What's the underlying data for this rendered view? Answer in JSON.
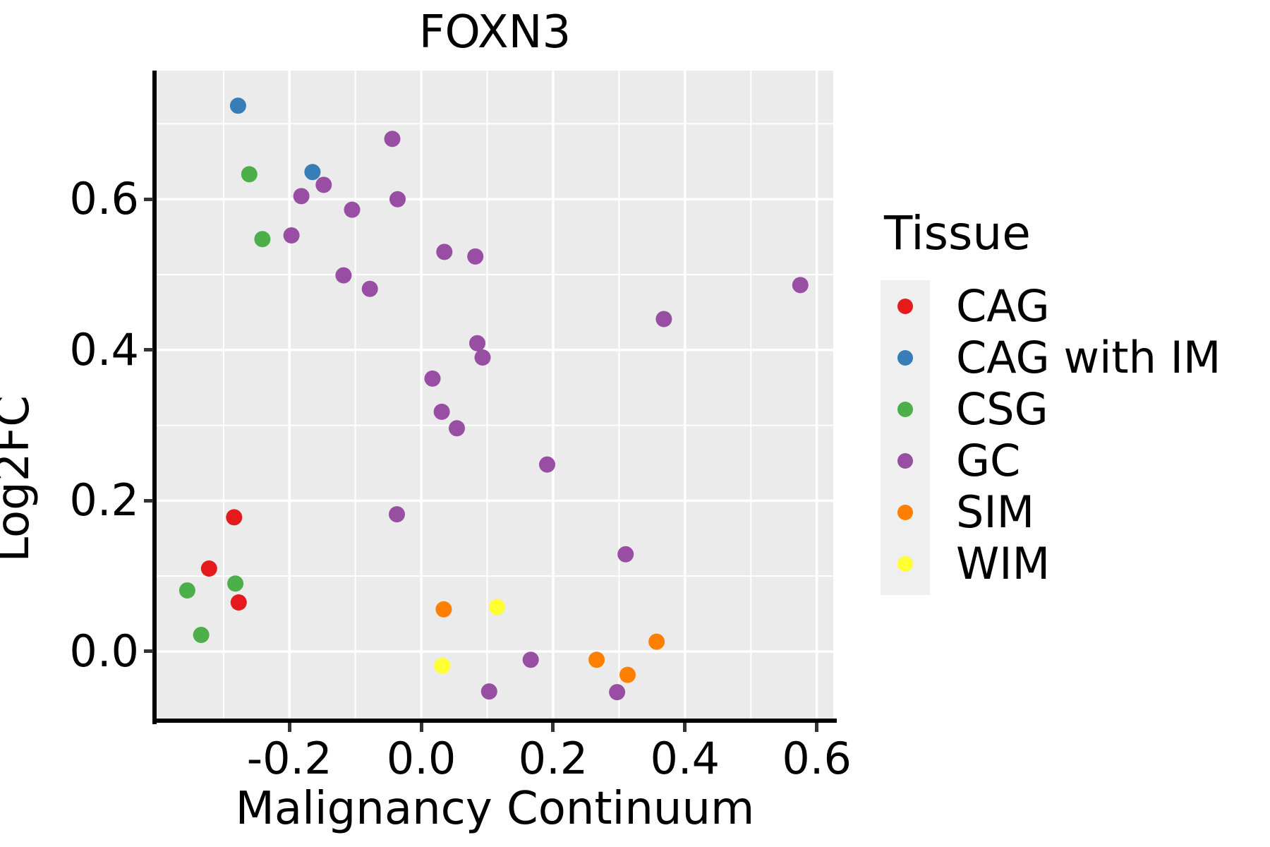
{
  "chart_data": {
    "type": "scatter",
    "title": "FOXN3",
    "xlabel": "Malignancy Continuum",
    "ylabel": "Log2FC",
    "panel_bg": "#EBEBEB",
    "grid": {
      "major_color": "#FFFFFF",
      "minor_color": "#FFFFFF",
      "major_width": 3.5,
      "minor_width": 2
    },
    "xlim": [
      -0.4015,
      0.625
    ],
    "ylim": [
      -0.0918,
      0.7706
    ],
    "x_major_ticks": [
      -0.2,
      0.0,
      0.2,
      0.4,
      0.6
    ],
    "x_tick_labels": [
      "-0.2",
      "0.0",
      "0.2",
      "0.4",
      "0.6"
    ],
    "x_minor_ticks": [
      -0.3,
      -0.1,
      0.1,
      0.3,
      0.5
    ],
    "y_major_ticks": [
      0.0,
      0.2,
      0.4,
      0.6
    ],
    "y_tick_labels": [
      "0.0",
      "0.2",
      "0.4",
      "0.6"
    ],
    "y_minor_ticks": [
      0.1,
      0.3,
      0.5,
      0.7
    ],
    "marker_radius_px": 11.5,
    "legend": {
      "title": "Tissue",
      "position": "right"
    },
    "series": [
      {
        "name": "CAG",
        "color": "#E41A1C",
        "points": [
          [
            -0.284,
            0.178
          ],
          [
            -0.322,
            0.11
          ],
          [
            -0.277,
            0.065
          ]
        ]
      },
      {
        "name": "CAG with IM",
        "color": "#377EB8",
        "points": [
          [
            -0.278,
            0.724
          ],
          [
            -0.165,
            0.636
          ]
        ]
      },
      {
        "name": "CSG",
        "color": "#4DAF4A",
        "points": [
          [
            -0.261,
            0.633
          ],
          [
            -0.241,
            0.547
          ],
          [
            -0.282,
            0.09
          ],
          [
            -0.355,
            0.081
          ],
          [
            -0.334,
            0.022
          ]
        ]
      },
      {
        "name": "GC",
        "color": "#984EA3",
        "points": [
          [
            -0.044,
            0.68
          ],
          [
            -0.148,
            0.619
          ],
          [
            -0.182,
            0.604
          ],
          [
            -0.036,
            0.6
          ],
          [
            -0.105,
            0.586
          ],
          [
            -0.197,
            0.552
          ],
          [
            -0.118,
            0.499
          ],
          [
            -0.078,
            0.481
          ],
          [
            0.035,
            0.53
          ],
          [
            0.082,
            0.524
          ],
          [
            0.085,
            0.409
          ],
          [
            0.093,
            0.39
          ],
          [
            0.017,
            0.362
          ],
          [
            0.031,
            0.318
          ],
          [
            0.054,
            0.296
          ],
          [
            0.191,
            0.248
          ],
          [
            -0.037,
            0.182
          ],
          [
            0.31,
            0.129
          ],
          [
            0.166,
            -0.011
          ],
          [
            0.103,
            -0.053
          ],
          [
            0.297,
            -0.054
          ],
          [
            0.368,
            0.441
          ],
          [
            0.575,
            0.486
          ]
        ]
      },
      {
        "name": "SIM",
        "color": "#FF7F00",
        "points": [
          [
            0.034,
            0.056
          ],
          [
            0.266,
            -0.011
          ],
          [
            0.313,
            -0.031
          ],
          [
            0.357,
            0.013
          ]
        ]
      },
      {
        "name": "WIM",
        "color": "#FFFF33",
        "points": [
          [
            0.115,
            0.059
          ],
          [
            0.032,
            -0.019
          ]
        ]
      }
    ]
  }
}
